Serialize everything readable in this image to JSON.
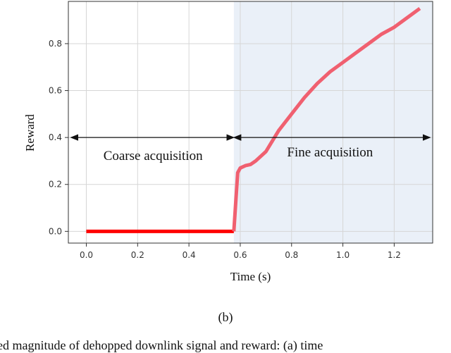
{
  "chart_data": {
    "type": "line",
    "xlabel": "Time (s)",
    "ylabel": "Reward",
    "xlim": [
      -0.07,
      1.35
    ],
    "ylim": [
      -0.05,
      0.98
    ],
    "xticks": [
      0.0,
      0.2,
      0.4,
      0.6,
      0.8,
      1.0,
      1.2
    ],
    "xtick_labels": [
      "0.0",
      "0.2",
      "0.4",
      "0.6",
      "0.8",
      "1.0",
      "1.2"
    ],
    "yticks": [
      0.0,
      0.2,
      0.4,
      0.6,
      0.8
    ],
    "ytick_labels": [
      "0.0",
      "0.2",
      "0.4",
      "0.6",
      "0.8"
    ],
    "grid": true,
    "shaded_region": {
      "x_start": 0.575,
      "x_end": 1.35,
      "color": "#eaf0f8"
    },
    "series": [
      {
        "segments": [
          {
            "color": "#ff0000",
            "x": [
              0.0,
              0.575
            ],
            "y": [
              0.0,
              0.0
            ]
          },
          {
            "color": "#f06070",
            "x": [
              0.575,
              0.59,
              0.6,
              0.62,
              0.64,
              0.66,
              0.7,
              0.75,
              0.8,
              0.85,
              0.9,
              0.95,
              1.0,
              1.05,
              1.1,
              1.15,
              1.2,
              1.25,
              1.3
            ],
            "y": [
              0.0,
              0.25,
              0.27,
              0.28,
              0.285,
              0.3,
              0.34,
              0.43,
              0.5,
              0.57,
              0.63,
              0.68,
              0.72,
              0.76,
              0.8,
              0.84,
              0.87,
              0.91,
              0.95
            ]
          }
        ]
      }
    ],
    "annotations": [
      {
        "text": "Coarse acquisition",
        "x": 0.26,
        "y": 0.305,
        "arrow": {
          "from": -0.06,
          "to": 0.575,
          "y": 0.4
        }
      },
      {
        "text": "Fine acquisition",
        "x": 0.95,
        "y": 0.32,
        "arrow": {
          "from": 0.575,
          "to": 1.34,
          "y": 0.4
        }
      }
    ]
  },
  "subcaption": "(b)",
  "caption_fragment": "ed magnitude of dehopped downlink signal and reward: (a) time"
}
